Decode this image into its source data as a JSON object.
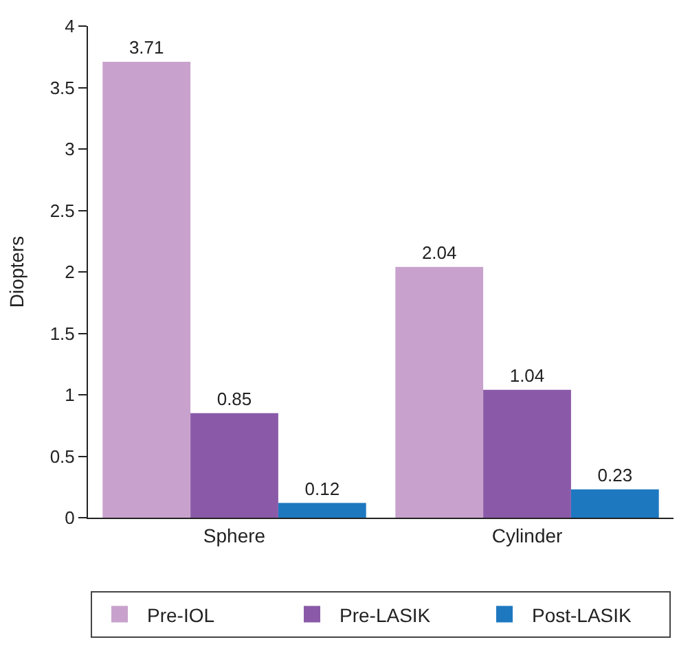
{
  "chart_data": {
    "type": "bar",
    "ylabel": "Diopters",
    "categories": [
      "Sphere",
      "Cylinder"
    ],
    "series": [
      {
        "name": "Pre-IOL",
        "color": "#c8a2cc",
        "values": [
          3.71,
          2.04
        ]
      },
      {
        "name": "Pre-LASIK",
        "color": "#8a5aa8",
        "values": [
          0.85,
          1.04
        ]
      },
      {
        "name": "Post-LASIK",
        "color": "#1e78c0",
        "values": [
          0.12,
          0.23
        ]
      }
    ],
    "ylim": [
      0,
      4
    ],
    "yticks": [
      0,
      0.5,
      1,
      1.5,
      2,
      2.5,
      3,
      3.5,
      4
    ],
    "legend": "bottom",
    "data_labels": true
  }
}
